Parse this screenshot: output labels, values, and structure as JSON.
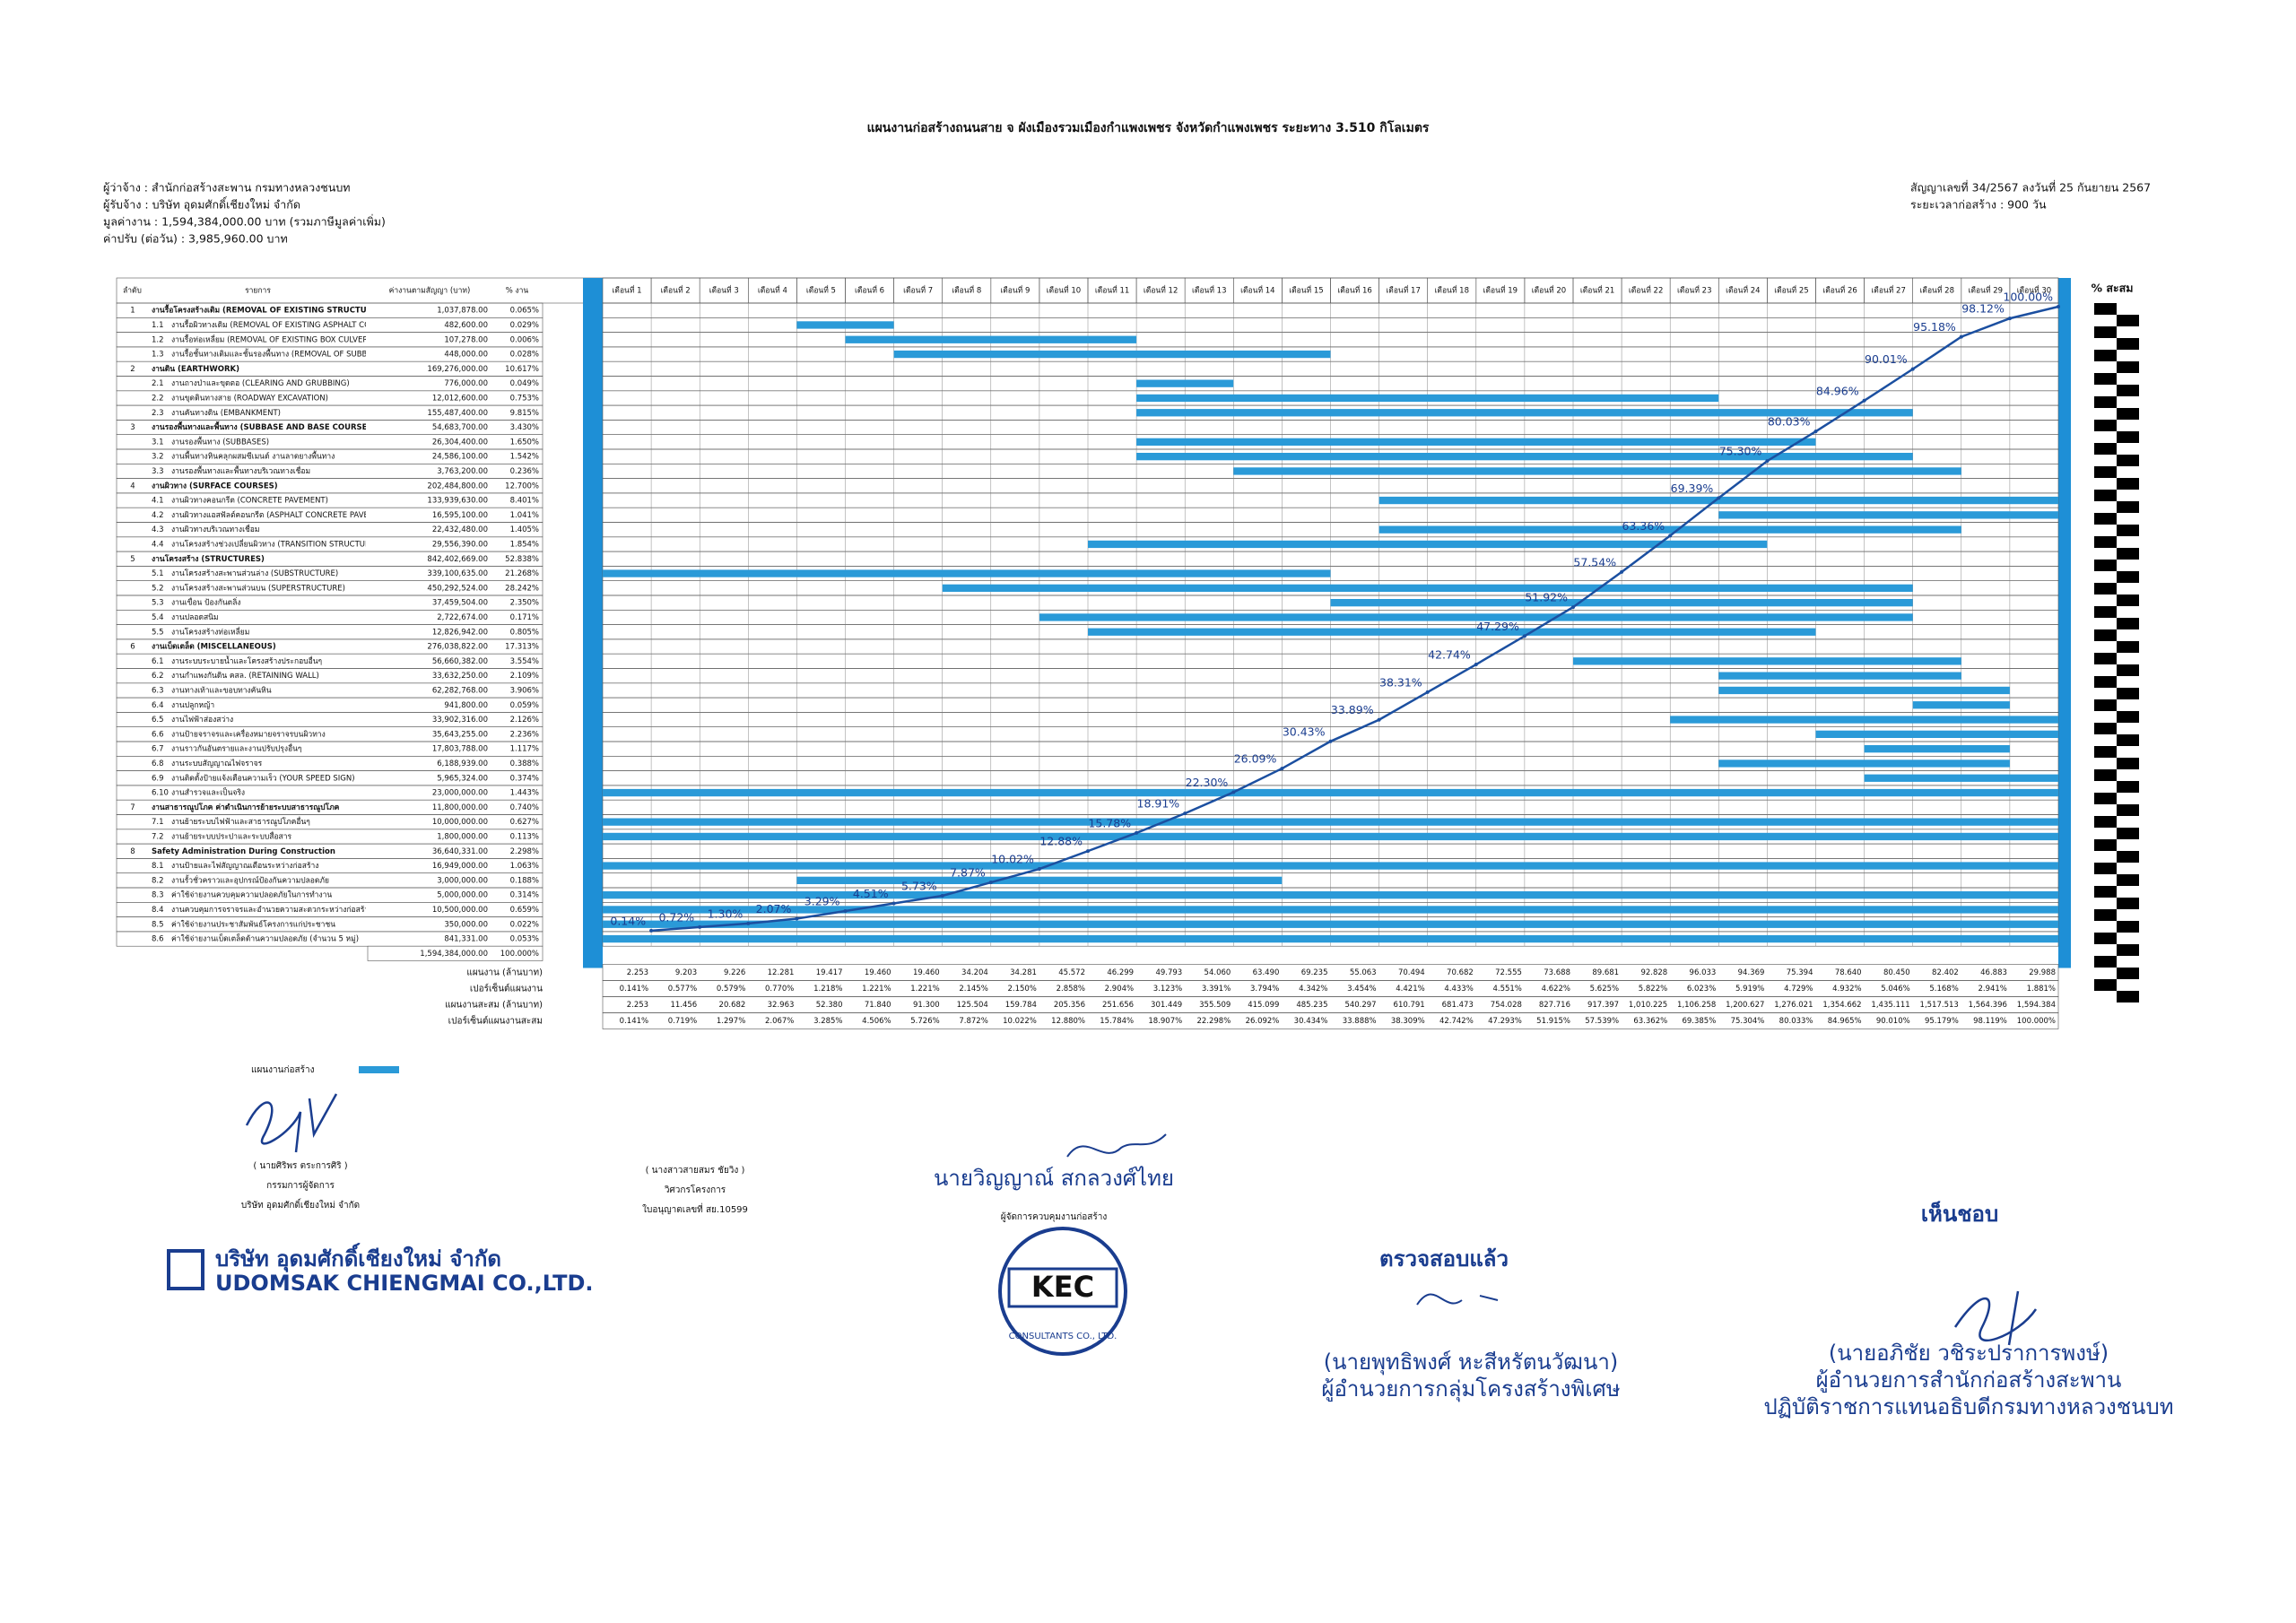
{
  "header": {
    "title": "แผนงานก่อสร้างถนนสาย จ ผังเมืองรวมเมืองกำแพงเพชร จังหวัดกำแพงเพชร ระยะทาง 3.510 กิโลเมตร",
    "left": [
      "ผู้ว่าจ้าง : สำนักก่อสร้างสะพาน กรมทางหลวงชนบท",
      "ผู้รับจ้าง : บริษัท อุดมศักดิ์เชียงใหม่ จำกัด",
      "มูลค่างาน : 1,594,384,000.00 บาท (รวมภาษีมูลค่าเพิ่ม)",
      "ค่าปรับ (ต่อวัน) : 3,985,960.00 บาท"
    ],
    "right": [
      "สัญญาเลขที่ 34/2567 ลงวันที่ 25 กันยายน 2567",
      "ระยะเวลาก่อสร้าง :  900 วัน"
    ]
  },
  "table": {
    "headers": [
      "ลำดับ",
      "รายการ",
      "ค่างานตามสัญญา (บาท)",
      "% งาน",
      "% สะสม"
    ],
    "months": [
      "เดือนที่ 1",
      "เดือนที่ 2",
      "เดือนที่ 3",
      "เดือนที่ 4",
      "เดือนที่ 5",
      "เดือนที่ 6",
      "เดือนที่ 7",
      "เดือนที่ 8",
      "เดือนที่ 9",
      "เดือนที่ 10",
      "เดือนที่ 11",
      "เดือนที่ 12",
      "เดือนที่ 13",
      "เดือนที่ 14",
      "เดือนที่ 15",
      "เดือนที่ 16",
      "เดือนที่ 17",
      "เดือนที่ 18",
      "เดือนที่ 19",
      "เดือนที่ 20",
      "เดือนที่ 21",
      "เดือนที่ 22",
      "เดือนที่ 23",
      "เดือนที่ 24",
      "เดือนที่ 25",
      "เดือนที่ 26",
      "เดือนที่ 27",
      "เดือนที่ 28",
      "เดือนที่ 29",
      "เดือนที่ 30"
    ],
    "rows": [
      {
        "no": "1",
        "name": "งานรื้อโครงสร้างเดิม (REMOVAL OF EXISTING STRUCTURES)",
        "amount": "1,037,878.00",
        "pct": "0.065%"
      },
      {
        "no": "1.1",
        "name": "งานรื้อผิวทางเดิม (REMOVAL OF EXISTING ASPHALT CONCRETE SURFACE)",
        "amount": "482,600.00",
        "pct": "0.029%",
        "span": [
          5,
          6
        ]
      },
      {
        "no": "1.2",
        "name": "งานรื้อท่อเหลี่ยม (REMOVAL OF EXISTING BOX CULVERTS)",
        "amount": "107,278.00",
        "pct": "0.006%",
        "span": [
          6,
          11
        ]
      },
      {
        "no": "1.3",
        "name": "งานรื้อชั้นทางเดิมและชั้นรองพื้นทาง (REMOVAL OF SUBBASE AND BASE COURSES)",
        "amount": "448,000.00",
        "pct": "0.028%",
        "span": [
          7,
          15
        ]
      },
      {
        "no": "2",
        "name": "งานดิน (EARTHWORK)",
        "amount": "169,276,000.00",
        "pct": "10.617%"
      },
      {
        "no": "2.1",
        "name": "งานถางป่าและขุดตอ (CLEARING AND GRUBBING)",
        "amount": "776,000.00",
        "pct": "0.049%",
        "span": [
          12,
          13
        ]
      },
      {
        "no": "2.2",
        "name": "งานขุดดินทางสาย (ROADWAY EXCAVATION)",
        "amount": "12,012,600.00",
        "pct": "0.753%",
        "span": [
          12,
          23
        ]
      },
      {
        "no": "2.3",
        "name": "งานคันทางดิน (EMBANKMENT)",
        "amount": "155,487,400.00",
        "pct": "9.815%",
        "span": [
          12,
          27
        ]
      },
      {
        "no": "3",
        "name": "งานรองพื้นทางและพื้นทาง (SUBBASE AND BASE COURSES)",
        "amount": "54,683,700.00",
        "pct": "3.430%"
      },
      {
        "no": "3.1",
        "name": "งานรองพื้นทาง (SUBBASES)",
        "amount": "26,304,400.00",
        "pct": "1.650%",
        "span": [
          12,
          25
        ]
      },
      {
        "no": "3.2",
        "name": "งานพื้นทางหินคลุกผสมซีเมนต์ งานลาดยางพื้นทาง",
        "amount": "24,586,100.00",
        "pct": "1.542%",
        "span": [
          12,
          27
        ]
      },
      {
        "no": "3.3",
        "name": "งานรองพื้นทางและพื้นทางบริเวณทางเชื่อม",
        "amount": "3,763,200.00",
        "pct": "0.236%",
        "span": [
          14,
          28
        ]
      },
      {
        "no": "4",
        "name": "งานผิวทาง (SURFACE COURSES)",
        "amount": "202,484,800.00",
        "pct": "12.700%"
      },
      {
        "no": "4.1",
        "name": "งานผิวทางคอนกรีต (CONCRETE PAVEMENT)",
        "amount": "133,939,630.00",
        "pct": "8.401%",
        "span": [
          17,
          30
        ]
      },
      {
        "no": "4.2",
        "name": "งานผิวทางแอสฟัลต์คอนกรีต (ASPHALT CONCRETE PAVEMENT)",
        "amount": "16,595,100.00",
        "pct": "1.041%",
        "span": [
          24,
          30
        ]
      },
      {
        "no": "4.3",
        "name": "งานผิวทางบริเวณทางเชื่อม",
        "amount": "22,432,480.00",
        "pct": "1.405%",
        "span": [
          17,
          28
        ]
      },
      {
        "no": "4.4",
        "name": "งานโครงสร้างช่วงเปลี่ยนผิวทาง (TRANSITION STRUCTURE)",
        "amount": "29,556,390.00",
        "pct": "1.854%",
        "span": [
          11,
          24
        ]
      },
      {
        "no": "5",
        "name": "งานโครงสร้าง (STRUCTURES)",
        "amount": "842,402,669.00",
        "pct": "52.838%"
      },
      {
        "no": "5.1",
        "name": "งานโครงสร้างสะพานส่วนล่าง (SUBSTRUCTURE)",
        "amount": "339,100,635.00",
        "pct": "21.268%",
        "span": [
          1,
          15
        ]
      },
      {
        "no": "5.2",
        "name": "งานโครงสร้างสะพานส่วนบน (SUPERSTRUCTURE)",
        "amount": "450,292,524.00",
        "pct": "28.242%",
        "span": [
          8,
          27
        ]
      },
      {
        "no": "5.3",
        "name": "งานเขื่อน ป้องกันตลิ่ง",
        "amount": "37,459,504.00",
        "pct": "2.350%",
        "span": [
          16,
          27
        ]
      },
      {
        "no": "5.4",
        "name": "งานปลอดสนิม",
        "amount": "2,722,674.00",
        "pct": "0.171%",
        "span": [
          10,
          27
        ]
      },
      {
        "no": "5.5",
        "name": "งานโครงสร้างท่อเหลี่ยม",
        "amount": "12,826,942.00",
        "pct": "0.805%",
        "span": [
          11,
          25
        ]
      },
      {
        "no": "6",
        "name": "งานเบ็ดเตล็ด (MISCELLANEOUS)",
        "amount": "276,038,822.00",
        "pct": "17.313%"
      },
      {
        "no": "6.1",
        "name": "งานระบบระบายน้ำและโครงสร้างประกอบอื่นๆ",
        "amount": "56,660,382.00",
        "pct": "3.554%",
        "span": [
          21,
          28
        ]
      },
      {
        "no": "6.2",
        "name": "งานกำแพงกันดิน คสล. (RETAINING WALL)",
        "amount": "33,632,250.00",
        "pct": "2.109%",
        "span": [
          24,
          28
        ]
      },
      {
        "no": "6.3",
        "name": "งานทางเท้าและขอบทางคันหิน",
        "amount": "62,282,768.00",
        "pct": "3.906%",
        "span": [
          24,
          29
        ]
      },
      {
        "no": "6.4",
        "name": "งานปลูกหญ้า",
        "amount": "941,800.00",
        "pct": "0.059%",
        "span": [
          28,
          29
        ]
      },
      {
        "no": "6.5",
        "name": "งานไฟฟ้าส่องสว่าง",
        "amount": "33,902,316.00",
        "pct": "2.126%",
        "span": [
          23,
          30
        ]
      },
      {
        "no": "6.6",
        "name": "งานป้ายจราจรและเครื่องหมายจราจรบนผิวทาง",
        "amount": "35,643,255.00",
        "pct": "2.236%",
        "span": [
          26,
          30
        ]
      },
      {
        "no": "6.7",
        "name": "งานราวกันอันตรายและงานปรับปรุงอื่นๆ",
        "amount": "17,803,788.00",
        "pct": "1.117%",
        "span": [
          27,
          29
        ]
      },
      {
        "no": "6.8",
        "name": "งานระบบสัญญาณไฟจราจร",
        "amount": "6,188,939.00",
        "pct": "0.388%",
        "span": [
          24,
          29
        ]
      },
      {
        "no": "6.9",
        "name": "งานติดตั้งป้ายแจ้งเตือนความเร็ว (YOUR SPEED SIGN)",
        "amount": "5,965,324.00",
        "pct": "0.374%",
        "span": [
          27,
          30
        ]
      },
      {
        "no": "6.10",
        "name": "งานสำรวจและเป็นจริง",
        "amount": "23,000,000.00",
        "pct": "1.443%",
        "span": [
          1,
          30
        ]
      },
      {
        "no": "7",
        "name": "งานสาธารณูปโภค ค่าดำเนินการย้ายระบบสาธารณูปโภค",
        "amount": "11,800,000.00",
        "pct": "0.740%"
      },
      {
        "no": "7.1",
        "name": "งานย้ายระบบไฟฟ้าและสาธารณูปโภคอื่นๆ",
        "amount": "10,000,000.00",
        "pct": "0.627%",
        "span": [
          1,
          30
        ]
      },
      {
        "no": "7.2",
        "name": "งานย้ายระบบประปาและระบบสื่อสาร",
        "amount": "1,800,000.00",
        "pct": "0.113%",
        "span": [
          1,
          30
        ]
      },
      {
        "no": "8",
        "name": "Safety Administration During Construction",
        "amount": "36,640,331.00",
        "pct": "2.298%"
      },
      {
        "no": "8.1",
        "name": "งานป้ายและไฟสัญญาณเตือนระหว่างก่อสร้าง",
        "amount": "16,949,000.00",
        "pct": "1.063%",
        "span": [
          1,
          30
        ]
      },
      {
        "no": "8.2",
        "name": "งานรั้วชั่วคราวและอุปกรณ์ป้องกันความปลอดภัย",
        "amount": "3,000,000.00",
        "pct": "0.188%",
        "span": [
          5,
          14
        ]
      },
      {
        "no": "8.3",
        "name": "ค่าใช้จ่ายงานควบคุมความปลอดภัยในการทำงาน",
        "amount": "5,000,000.00",
        "pct": "0.314%",
        "span": [
          1,
          30
        ]
      },
      {
        "no": "8.4",
        "name": "งานควบคุมการจราจรและอำนวยความสะดวกระหว่างก่อสร้าง",
        "amount": "10,500,000.00",
        "pct": "0.659%",
        "span": [
          1,
          30
        ]
      },
      {
        "no": "8.5",
        "name": "ค่าใช้จ่ายงานประชาสัมพันธ์โครงการแก่ประชาชน",
        "amount": "350,000.00",
        "pct": "0.022%",
        "span": [
          1,
          30
        ]
      },
      {
        "no": "8.6",
        "name": "ค่าใช้จ่ายงานเบ็ดเตล็ดด้านความปลอดภัย (จำนวน 5 หมู่)",
        "amount": "841,331.00",
        "pct": "0.053%",
        "span": [
          1,
          30
        ]
      }
    ],
    "total": {
      "amount": "1,594,384,000.00",
      "pct": "100.000%"
    },
    "summary": [
      {
        "label": "แผนงาน (ล้านบาท)",
        "values": [
          "2.253",
          "9.203",
          "9.226",
          "12.281",
          "19.417",
          "19.460",
          "19.460",
          "34.204",
          "34.281",
          "45.572",
          "46.299",
          "49.793",
          "54.060",
          "63.490",
          "69.235",
          "55.063",
          "70.494",
          "70.682",
          "72.555",
          "73.688",
          "89.681",
          "92.828",
          "96.033",
          "94.369",
          "75.394",
          "78.640",
          "80.450",
          "82.402",
          "46.883",
          "29.988"
        ]
      },
      {
        "label": "เปอร์เซ็นต์แผนงาน",
        "values": [
          "0.141%",
          "0.577%",
          "0.579%",
          "0.770%",
          "1.218%",
          "1.221%",
          "1.221%",
          "2.145%",
          "2.150%",
          "2.858%",
          "2.904%",
          "3.123%",
          "3.391%",
          "3.794%",
          "4.342%",
          "3.454%",
          "4.421%",
          "4.433%",
          "4.551%",
          "4.622%",
          "5.625%",
          "5.822%",
          "6.023%",
          "5.919%",
          "4.729%",
          "4.932%",
          "5.046%",
          "5.168%",
          "2.941%",
          "1.881%"
        ]
      },
      {
        "label": "แผนงานสะสม (ล้านบาท)",
        "values": [
          "2.253",
          "11.456",
          "20.682",
          "32.963",
          "52.380",
          "71.840",
          "91.300",
          "125.504",
          "159.784",
          "205.356",
          "251.656",
          "301.449",
          "355.509",
          "415.099",
          "485.235",
          "540.297",
          "610.791",
          "681.473",
          "754.028",
          "827.716",
          "917.397",
          "1,010.225",
          "1,106.258",
          "1,200.627",
          "1,276.021",
          "1,354.662",
          "1,435.111",
          "1,517.513",
          "1,564.396",
          "1,594.384"
        ]
      },
      {
        "label": "เปอร์เซ็นต์แผนงานสะสม",
        "values": [
          "0.141%",
          "0.719%",
          "1.297%",
          "2.067%",
          "3.285%",
          "4.506%",
          "5.726%",
          "7.872%",
          "10.022%",
          "12.880%",
          "15.784%",
          "18.907%",
          "22.298%",
          "26.092%",
          "30.434%",
          "33.888%",
          "38.309%",
          "42.742%",
          "47.293%",
          "51.915%",
          "57.539%",
          "63.362%",
          "69.385%",
          "75.304%",
          "80.033%",
          "84.965%",
          "90.010%",
          "95.179%",
          "98.119%",
          "100.000%"
        ]
      }
    ],
    "legend": "แผนงานก่อสร้าง"
  },
  "s_curve": {
    "ylim": [
      0,
      100
    ],
    "values": [
      0.141,
      0.719,
      1.297,
      2.067,
      3.285,
      4.506,
      5.726,
      7.872,
      10.022,
      12.88,
      15.784,
      18.907,
      22.298,
      26.092,
      30.434,
      33.888,
      38.309,
      42.742,
      47.293,
      51.915,
      57.539,
      63.362,
      69.385,
      75.304,
      80.033,
      84.965,
      90.01,
      95.179,
      98.119,
      100
    ],
    "value_labels": [
      "0.14%",
      "0.72%",
      "1.30%",
      "2.07%",
      "3.29%",
      "4.51%",
      "5.73%",
      "7.87%",
      "10.02%",
      "12.88%",
      "15.78%",
      "18.91%",
      "22.30%",
      "26.09%",
      "30.43%",
      "33.89%",
      "38.31%",
      "42.74%",
      "47.29%",
      "51.92%",
      "57.54%",
      "63.36%",
      "69.39%",
      "75.30%",
      "80.03%",
      "84.96%",
      "90.01%",
      "95.18%",
      "98.12%",
      "100.00%"
    ]
  },
  "signatures": [
    {
      "name": "( นายศิริพร ตระการศิริ )",
      "lines": [
        "กรรมการผู้จัดการ",
        "บริษัท อุดมศักดิ์เชียงใหม่ จำกัด"
      ],
      "logo": [
        "บริษัท อุดมศักดิ์เชียงใหม่ จำกัด",
        "UDOMSAK CHIENGMAI CO.,LTD."
      ]
    },
    {
      "name": "( นางสาวสายสมร ชัยวิง )",
      "lines": [
        "วิศวกรโครงการ",
        "ใบอนุญาตเลขที่ สย.10599"
      ]
    },
    {
      "name": "นายวิญญาณ์ สกลวงศ์ไทย",
      "lines": [
        "ผู้จัดการควบคุมงานก่อสร้าง"
      ],
      "logo": [
        "KEC",
        "CONSULTANTS CO., LTD."
      ]
    },
    {
      "stamp": "ตรวจสอบแล้ว",
      "name": "(นายพุทธิพงศ์ หะสีหรัตนวัฒนา)",
      "lines": [
        "ผู้อำนวยการกลุ่มโครงสร้างพิเศษ"
      ]
    },
    {
      "stamp": "เห็นชอบ",
      "name": "(นายอภิชัย วชิระปราการพงษ์)",
      "lines": [
        "ผู้อำนวยการสำนักก่อสร้างสะพาน",
        "ปฏิบัติราชการแทนอธิบดีกรมทางหลวงชนบท"
      ]
    }
  ]
}
